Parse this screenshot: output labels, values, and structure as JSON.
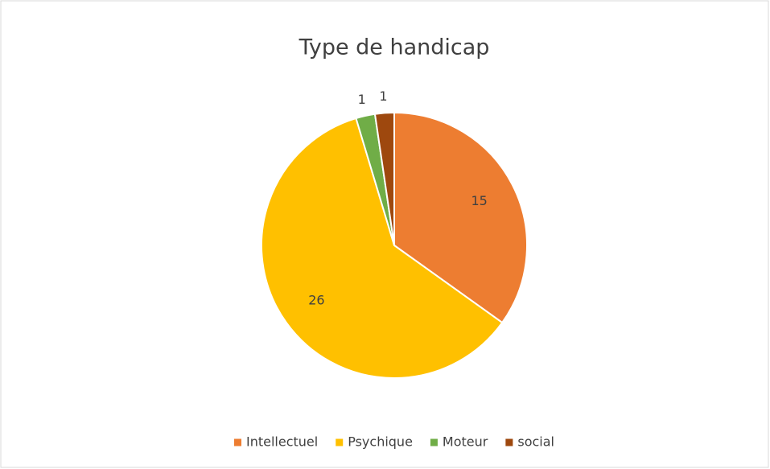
{
  "chart_data": {
    "type": "pie",
    "title": "Type de handicap",
    "categories": [
      "Intellectuel",
      "Psychique",
      "Moteur",
      "social"
    ],
    "values": [
      15,
      26,
      1,
      1
    ],
    "colors": [
      "#ED7D31",
      "#FFC000",
      "#70AD47",
      "#9E480E"
    ],
    "legend": "bottom"
  }
}
